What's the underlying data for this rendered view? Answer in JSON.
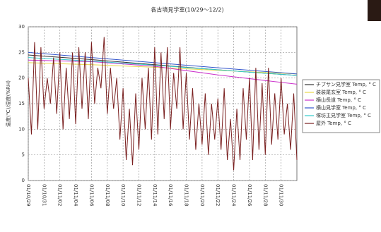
{
  "chart_data": {
    "type": "line",
    "title": "各古墳見学室(10/29～12/2)",
    "y_label": "温度(℃)/湿度(%RH)",
    "xlim": [
      0,
      34
    ],
    "xticks": [
      {
        "value": 0,
        "label": "01/10/29"
      },
      {
        "value": 2,
        "label": "01/10/31"
      },
      {
        "value": 4,
        "label": "01/11/02"
      },
      {
        "value": 6,
        "label": "01/11/04"
      },
      {
        "value": 8,
        "label": "01/11/06"
      },
      {
        "value": 10,
        "label": "01/11/08"
      },
      {
        "value": 12,
        "label": "01/11/10"
      },
      {
        "value": 14,
        "label": "01/11/12"
      },
      {
        "value": 16,
        "label": "01/11/14"
      },
      {
        "value": 18,
        "label": "01/11/16"
      },
      {
        "value": 20,
        "label": "01/11/18"
      },
      {
        "value": 22,
        "label": "01/11/20"
      },
      {
        "value": 24,
        "label": "01/11/22"
      },
      {
        "value": 26,
        "label": "01/11/24"
      },
      {
        "value": 28,
        "label": "01/11/26"
      },
      {
        "value": 30,
        "label": "01/11/28"
      },
      {
        "value": 32,
        "label": "01/11/30"
      }
    ],
    "ylim": [
      0,
      30
    ],
    "yticks": [
      0,
      5,
      10,
      15,
      20,
      25,
      30
    ],
    "grid": true,
    "legend": "right",
    "series": [
      {
        "name": "チブサン見学室 Temp, ° C",
        "color": "#333333",
        "x": [
          0,
          8,
          16,
          24,
          34
        ],
        "values": [
          24.5,
          23.6,
          22.6,
          21.6,
          20.5
        ]
      },
      {
        "name": "装装尾玄室 Temp, ° C",
        "color": "#e8d84a",
        "x": [
          0,
          8,
          16,
          24,
          34
        ],
        "values": [
          23,
          22.6,
          22.1,
          21.5,
          20.8
        ]
      },
      {
        "name": "横山長道 Temp, ° C",
        "color": "#cc33cc",
        "x": [
          0,
          8,
          16,
          24,
          34
        ],
        "values": [
          23.5,
          23.2,
          22.3,
          20.6,
          18.8
        ]
      },
      {
        "name": "横山見学室 Temp, ° C",
        "color": "#3355cc",
        "x": [
          0,
          8,
          16,
          24,
          34
        ],
        "values": [
          25,
          24,
          23,
          22,
          20.8
        ]
      },
      {
        "name": "塚坊主見学室 Temp, ° C",
        "color": "#33cccc",
        "x": [
          0,
          8,
          16,
          24,
          34
        ],
        "values": [
          24,
          23.3,
          22.5,
          21.6,
          20.5
        ]
      },
      {
        "name": "屋外 Temp, ° C",
        "color": "#7a2020",
        "x": [
          0,
          0.4,
          0.8,
          1.2,
          1.6,
          2,
          2.4,
          2.8,
          3.2,
          3.6,
          4,
          4.4,
          4.8,
          5.2,
          5.6,
          6,
          6.4,
          6.8,
          7.2,
          7.6,
          8,
          8.4,
          8.8,
          9.2,
          9.6,
          10,
          10.4,
          10.8,
          11.2,
          11.6,
          12,
          12.4,
          12.8,
          13.2,
          13.6,
          14,
          14.4,
          14.8,
          15.2,
          15.6,
          16,
          16.4,
          16.8,
          17.2,
          17.6,
          18,
          18.4,
          18.8,
          19.2,
          19.6,
          20,
          20.4,
          20.8,
          21.2,
          21.6,
          22,
          22.4,
          22.8,
          23.2,
          23.6,
          24,
          24.4,
          24.8,
          25.2,
          25.6,
          26,
          26.4,
          26.8,
          27.2,
          27.6,
          28,
          28.4,
          28.8,
          29.2,
          29.6,
          30,
          30.4,
          30.8,
          31.2,
          31.6,
          32,
          32.4,
          32.8,
          33.2,
          33.6,
          34
        ],
        "values": [
          20,
          9,
          27,
          10,
          26,
          14,
          20,
          15,
          24,
          13,
          25,
          10,
          22,
          12,
          25,
          11,
          26,
          14,
          25,
          12,
          27,
          15,
          22,
          18,
          28,
          13,
          22,
          14,
          20,
          8,
          18,
          4,
          14,
          3,
          17,
          6,
          20,
          10,
          22,
          8,
          26,
          9,
          25,
          12,
          26,
          10,
          21,
          14,
          26,
          10,
          21,
          8,
          18,
          6,
          15,
          7,
          17,
          5,
          15,
          8,
          16,
          6,
          18,
          4,
          12,
          2,
          14,
          4,
          18,
          8,
          20,
          4,
          22,
          6,
          19,
          5,
          22,
          7,
          17,
          8,
          20,
          9,
          15,
          6,
          17,
          4
        ]
      }
    ]
  }
}
